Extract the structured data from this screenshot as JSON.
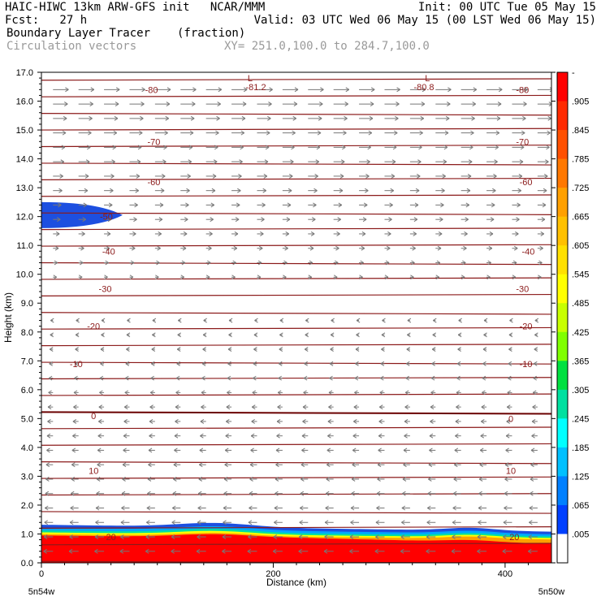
{
  "header": {
    "line1_left": "HAIC-HIWC 13km ARW-GFS init   NCAR/MMM",
    "line1_right": "Init: 00 UTC Tue 05 May 15",
    "line2_left": "Fcst:   27 h",
    "line2_right": "Valid: 03 UTC Wed 06 May 15 (00 LST Wed 06 May 15)",
    "field_name": "Boundary Layer Tracer",
    "field_units": "(fraction)",
    "vector_name": "Circulation vectors",
    "xsection": "XY= 251.0,100.0 to 284.7,100.0"
  },
  "chart_data": {
    "type": "heatmap",
    "xlabel": "Distance (km)",
    "ylabel": "Height (km)",
    "xlim": [
      0,
      440
    ],
    "ylim": [
      0,
      17
    ],
    "x_ticks": [
      0,
      200,
      400
    ],
    "x_tick_labels": [
      "0",
      "200",
      "400"
    ],
    "y_ticks": [
      0,
      1,
      2,
      3,
      4,
      5,
      6,
      7,
      8,
      9,
      10,
      11,
      12,
      13,
      14,
      15,
      16,
      17
    ],
    "y_tick_labels": [
      "0.0",
      "1.0",
      "2.0",
      "3.0",
      "4.0",
      "5.0",
      "6.0",
      "7.0",
      "8.0",
      "9.0",
      "10.0",
      "11.0",
      "12.0",
      "13.0",
      "14.0",
      "15.0",
      "16.0",
      "17.0"
    ],
    "x_endpoint_labels": [
      "5n54w",
      "5n50w"
    ],
    "colorbar": {
      "labels": [
        "-",
        ".905",
        ".845",
        ".785",
        ".725",
        ".665",
        ".605",
        ".545",
        ".485",
        ".425",
        ".365",
        ".305",
        ".245",
        ".185",
        ".125",
        ".065",
        ".005"
      ],
      "colors": [
        "#ff0000",
        "#ff2a00",
        "#ff5000",
        "#ff7800",
        "#ffa000",
        "#ffc000",
        "#ffe000",
        "#ffff00",
        "#c8ff00",
        "#80ff00",
        "#00e040",
        "#00e0a0",
        "#00ffff",
        "#00c0ff",
        "#0080ff",
        "#0040ff",
        "#ffffff"
      ]
    },
    "tracer_regions": [
      {
        "name": "boundary layer",
        "value_range": [
          0.665,
          1.0
        ],
        "top_km_start": 1.1,
        "top_km_end": 0.9
      },
      {
        "name": "upper plume",
        "value_range": [
          0.065,
          0.125
        ],
        "x_km": [
          0,
          70
        ],
        "z_km": [
          11.6,
          12.5
        ]
      }
    ],
    "temperature_contours": {
      "units": "deg C",
      "labels": [
        {
          "text": "-81.2",
          "x": 185,
          "z": 16.5
        },
        {
          "text": "-80.8",
          "x": 330,
          "z": 16.5
        },
        {
          "text": "-80",
          "x": 95,
          "z": 16.4
        },
        {
          "text": "-80",
          "x": 415,
          "z": 16.4
        },
        {
          "text": "-70",
          "x": 97,
          "z": 14.6
        },
        {
          "text": "-70",
          "x": 415,
          "z": 14.6
        },
        {
          "text": "-60",
          "x": 97,
          "z": 13.2
        },
        {
          "text": "-60",
          "x": 418,
          "z": 13.2
        },
        {
          "text": "-50",
          "x": 56,
          "z": 12.0
        },
        {
          "text": "-40",
          "x": 58,
          "z": 10.8
        },
        {
          "text": "-40",
          "x": 420,
          "z": 10.8
        },
        {
          "text": "-30",
          "x": 55,
          "z": 9.5
        },
        {
          "text": "-30",
          "x": 415,
          "z": 9.5
        },
        {
          "text": "-20",
          "x": 45,
          "z": 8.2
        },
        {
          "text": "-20",
          "x": 418,
          "z": 8.2
        },
        {
          "text": "-10",
          "x": 30,
          "z": 6.9
        },
        {
          "text": "-10",
          "x": 418,
          "z": 6.9
        },
        {
          "text": "0",
          "x": 45,
          "z": 5.1
        },
        {
          "text": "0",
          "x": 405,
          "z": 5.0
        },
        {
          "text": "10",
          "x": 45,
          "z": 3.2
        },
        {
          "text": "10",
          "x": 405,
          "z": 3.2
        },
        {
          "text": "20",
          "x": 60,
          "z": 0.9
        },
        {
          "text": "20",
          "x": 408,
          "z": 0.9
        }
      ],
      "low_markers": [
        {
          "text": "L",
          "x": 180,
          "z": 16.8
        },
        {
          "text": "L",
          "x": 333,
          "z": 16.8
        }
      ]
    },
    "vectors": {
      "upper_direction": "east",
      "lower_direction": "west",
      "reversal_height_km": 9.5
    }
  }
}
